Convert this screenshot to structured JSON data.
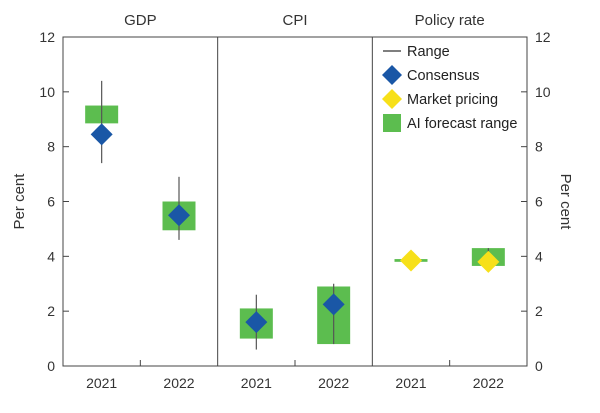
{
  "chart_data": {
    "type": "range",
    "panels": [
      "GDP",
      "CPI",
      "Policy rate"
    ],
    "categories": [
      "2021",
      "2022"
    ],
    "ylabel_left": "Per cent",
    "ylabel_right": "Per cent",
    "ylim": [
      0,
      12
    ],
    "yticks": [
      0,
      2,
      4,
      6,
      8,
      10,
      12
    ],
    "grid": false,
    "legend": {
      "placement": "top-right",
      "items": [
        "Range",
        "Consensus",
        "Market pricing",
        "AI forecast range"
      ]
    },
    "series": [
      {
        "name": "Range",
        "values": [
          {
            "panel": "GDP",
            "category": "2021",
            "low": 7.4,
            "high": 10.4
          },
          {
            "panel": "GDP",
            "category": "2022",
            "low": 4.6,
            "high": 6.9
          },
          {
            "panel": "CPI",
            "category": "2021",
            "low": 0.6,
            "high": 2.6
          },
          {
            "panel": "CPI",
            "category": "2022",
            "low": 0.8,
            "high": 3.0
          },
          {
            "panel": "Policy rate",
            "category": "2021",
            "low": 3.8,
            "high": 4.0
          },
          {
            "panel": "Policy rate",
            "category": "2022",
            "low": 3.5,
            "high": 4.3
          }
        ]
      },
      {
        "name": "Consensus",
        "values": [
          {
            "panel": "GDP",
            "category": "2021",
            "value": 8.45
          },
          {
            "panel": "GDP",
            "category": "2022",
            "value": 5.5
          },
          {
            "panel": "CPI",
            "category": "2021",
            "value": 1.6
          },
          {
            "panel": "CPI",
            "category": "2022",
            "value": 2.25
          }
        ]
      },
      {
        "name": "Market pricing",
        "values": [
          {
            "panel": "Policy rate",
            "category": "2021",
            "value": 3.85
          },
          {
            "panel": "Policy rate",
            "category": "2022",
            "value": 3.8
          }
        ]
      },
      {
        "name": "AI forecast range",
        "values": [
          {
            "panel": "GDP",
            "category": "2021",
            "low": 8.85,
            "high": 9.5
          },
          {
            "panel": "GDP",
            "category": "2022",
            "low": 4.95,
            "high": 6.0
          },
          {
            "panel": "CPI",
            "category": "2021",
            "low": 1.0,
            "high": 2.1
          },
          {
            "panel": "CPI",
            "category": "2022",
            "low": 0.8,
            "high": 2.9
          },
          {
            "panel": "Policy rate",
            "category": "2021",
            "low": 3.8,
            "high": 3.9
          },
          {
            "panel": "Policy rate",
            "category": "2022",
            "low": 3.65,
            "high": 4.3
          }
        ]
      }
    ]
  },
  "colors": {
    "consensus": "#1a57a6",
    "market_pricing": "#f7e019",
    "ai_forecast": "#5cbd4f",
    "range_line": "#555555",
    "axis": "#444444"
  }
}
